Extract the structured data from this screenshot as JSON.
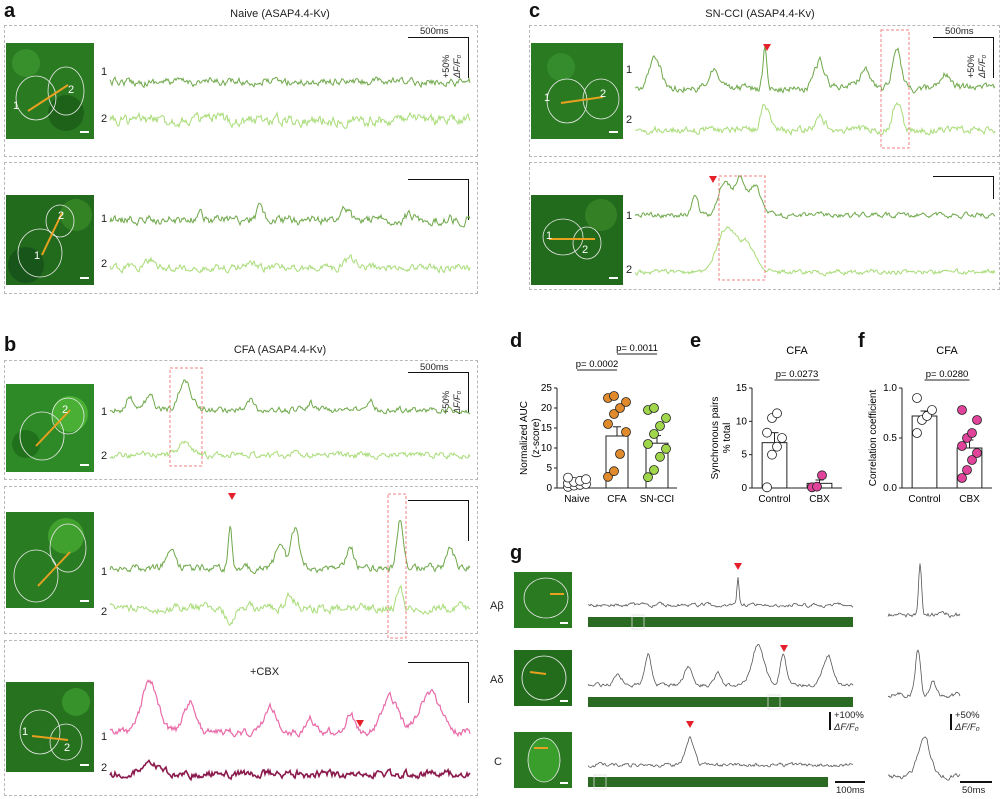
{
  "panel_a": {
    "letter": "a",
    "title": "Naive (ASAP4.4-Kv)",
    "scale_time": "500ms",
    "scale_amp": "+50%",
    "scale_unit": "ΔF/F₀",
    "rows": [
      {
        "cells": [
          "1",
          "2"
        ],
        "trace_labels": [
          "1",
          "2"
        ]
      },
      {
        "cells": [
          "2",
          "1"
        ],
        "trace_labels": [
          "1",
          "2"
        ]
      }
    ]
  },
  "panel_b": {
    "letter": "b",
    "title": "CFA (ASAP4.4-Kv)",
    "scale_time": "500ms",
    "scale_amp": "+50%",
    "scale_unit": "ΔF/F₀",
    "cbx_label": "+CBX",
    "rows": [
      {
        "cells": [
          "2"
        ],
        "trace_labels": [
          "1",
          "2"
        ]
      },
      {
        "cells": [],
        "trace_labels": [
          "1",
          "2"
        ]
      },
      {
        "cells": [
          "1",
          "2"
        ],
        "trace_labels": [
          "1",
          "2"
        ]
      }
    ]
  },
  "panel_c": {
    "letter": "c",
    "title": "SN-CCI (ASAP4.4-Kv)",
    "scale_time": "500ms",
    "scale_amp": "+50%",
    "scale_unit": "ΔF/F₀",
    "rows": [
      {
        "cells": [
          "1",
          "2"
        ],
        "trace_labels": [
          "1",
          "2"
        ]
      },
      {
        "cells": [
          "1",
          "2"
        ],
        "trace_labels": [
          "1",
          "2"
        ]
      }
    ]
  },
  "panel_g": {
    "letter": "g",
    "rows": [
      {
        "label": "Aβ"
      },
      {
        "label": "Aδ"
      },
      {
        "label": "C"
      }
    ],
    "scale_amp1": "+100%",
    "scale_amp2": "+50%",
    "scale_unit": "ΔF/F₀",
    "scale_time1": "100ms",
    "scale_time2": "50ms"
  },
  "chart_data": [
    {
      "id": "d",
      "letter": "d",
      "type": "bar",
      "title": "",
      "ylabel": "Normalized AUC\n(z-score)",
      "ylabel_line1": "Normalized AUC",
      "ylabel_line2": "(z-score)",
      "categories": [
        "Naive",
        "CFA",
        "SN-CCI"
      ],
      "values": [
        1.2,
        13,
        11.2
      ],
      "errors": [
        0.3,
        2.3,
        1.9
      ],
      "ylim": [
        0,
        25
      ],
      "yticks": [
        "0",
        "5",
        "10",
        "15",
        "20",
        "25"
      ],
      "points": [
        [
          0.3,
          0.6,
          0.8,
          1.0,
          1.2,
          1.5,
          1.8,
          2.2,
          2.6
        ],
        [
          2.8,
          4.2,
          8.5,
          14,
          16,
          18.5,
          20,
          21.5,
          22.5,
          23
        ],
        [
          2.7,
          4.5,
          7.8,
          9.8,
          11,
          13.5,
          15.5,
          17.5,
          19.5,
          20
        ]
      ],
      "point_colors": [
        "#ffffff",
        "#e08a2c",
        "#9fd64a"
      ],
      "comparisons": [
        {
          "from": 0,
          "to": 1,
          "label": "p= 0.0002"
        },
        {
          "from": 1,
          "to": 2,
          "label": "p= 0.0011"
        }
      ]
    },
    {
      "id": "e",
      "letter": "e",
      "type": "bar",
      "title": "CFA",
      "ylabel": "Synchronous pairs\n% total",
      "ylabel_line1": "Synchronous pairs",
      "ylabel_line2": "% total",
      "categories": [
        "Control",
        "CBX"
      ],
      "values": [
        6.8,
        0.7
      ],
      "errors": [
        1.5,
        0.5
      ],
      "ylim": [
        0,
        15
      ],
      "yticks": [
        "0",
        "5",
        "10",
        "15"
      ],
      "points": [
        [
          0.1,
          5.0,
          6.2,
          7.5,
          8.3,
          10.5,
          11.2
        ],
        [
          0.1,
          0.2,
          1.9
        ]
      ],
      "point_colors": [
        "#ffffff",
        "#e0449a"
      ],
      "comparisons": [
        {
          "from": 0,
          "to": 1,
          "label": "p= 0.0273"
        }
      ]
    },
    {
      "id": "f",
      "letter": "f",
      "type": "bar",
      "title": "CFA",
      "ylabel": "Correlation coefficient",
      "ylabel_line1": "Correlation coefficient",
      "ylabel_line2": "",
      "categories": [
        "Control",
        "CBX"
      ],
      "values": [
        0.72,
        0.4
      ],
      "errors": [
        0.05,
        0.08
      ],
      "ylim": [
        0,
        1.0
      ],
      "yticks": [
        "0.0",
        "0.5",
        "1.0"
      ],
      "points": [
        [
          0.55,
          0.68,
          0.72,
          0.78,
          0.9
        ],
        [
          0.1,
          0.18,
          0.28,
          0.35,
          0.42,
          0.5,
          0.55,
          0.68,
          0.78
        ]
      ],
      "point_colors": [
        "#ffffff",
        "#e0449a"
      ],
      "comparisons": [
        {
          "from": 0,
          "to": 1,
          "label": "p= 0.0280"
        }
      ]
    }
  ],
  "colors": {
    "trace_dark_green": "#6ea84a",
    "trace_light_green": "#a8dc78",
    "trace_pink": "#e86aa8",
    "trace_maroon": "#8a1a4c",
    "arrow_red": "#e6202a",
    "box_pink": "#f08080",
    "roi_line": "#e8a020"
  }
}
